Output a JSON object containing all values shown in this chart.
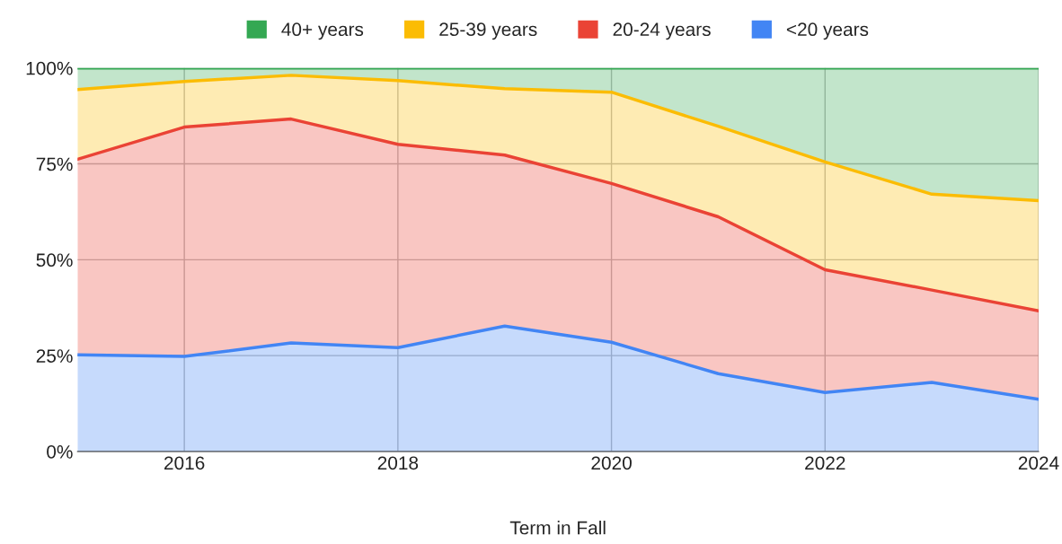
{
  "chart_data": {
    "type": "area",
    "stacked": true,
    "xlabel": "Term in Fall",
    "x": [
      2015,
      2016,
      2017,
      2018,
      2019,
      2020,
      2021,
      2022,
      2023,
      2024
    ],
    "series": [
      {
        "name": "<20 years",
        "color": "#4285f4",
        "values": [
          25.2,
          24.8,
          28.3,
          27.1,
          32.7,
          28.5,
          20.3,
          15.4,
          18.0,
          13.6
        ]
      },
      {
        "name": "20-24 years",
        "color": "#ea4335",
        "values": [
          51.0,
          59.8,
          58.4,
          53.0,
          44.6,
          41.4,
          40.9,
          32.0,
          24.1,
          23.1
        ]
      },
      {
        "name": "25-39 years",
        "color": "#fbbc04",
        "values": [
          18.2,
          11.9,
          11.4,
          16.6,
          17.3,
          23.8,
          23.6,
          28.1,
          25.0,
          28.7
        ]
      },
      {
        "name": "40+ years",
        "color": "#34a853",
        "values": [
          5.6,
          3.5,
          1.9,
          3.3,
          5.4,
          6.3,
          15.2,
          24.5,
          32.9,
          34.6
        ]
      }
    ],
    "xlim": [
      2015,
      2024
    ],
    "xticks": [
      2016,
      2018,
      2020,
      2022,
      2024
    ],
    "ylim": [
      0,
      100
    ],
    "yticks": [
      {
        "value": 0,
        "label": "0%"
      },
      {
        "value": 25,
        "label": "25%"
      },
      {
        "value": 50,
        "label": "50%"
      },
      {
        "value": 75,
        "label": "75%"
      },
      {
        "value": 100,
        "label": "100%"
      }
    ],
    "grid": true,
    "legend": "top"
  }
}
